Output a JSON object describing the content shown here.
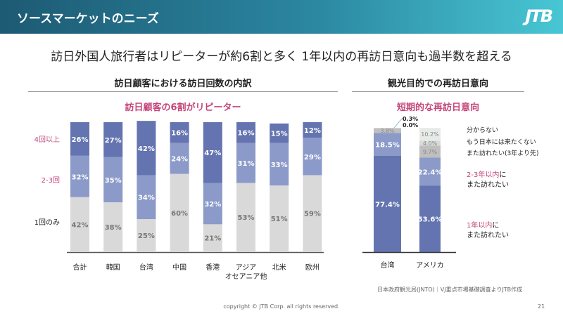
{
  "header": {
    "title": "ソースマーケットのニーズ",
    "logo": "JTB"
  },
  "main_title": "訪日外国人旅行者はリピーターが約6割と多く  1年以内の再訪日意向も過半数を超える",
  "left": {
    "title": "訪日顧客における訪日回数の内訳",
    "subtitle": "訪日顧客の6割がリピーター"
  },
  "right": {
    "title": "観光目的での再訪日意向",
    "subtitle": "短期的な再訪日意向"
  },
  "colors": {
    "dark": "#6474b0",
    "mid": "#8b9ac8",
    "light": "#d9d9d9",
    "pink": "#c4457a"
  },
  "chart_data": [
    {
      "type": "bar",
      "stacked": true,
      "categories": [
        "合計",
        "韓国",
        "台湾",
        "中国",
        "香港",
        "アジア\nオセアニア他",
        "北米",
        "欧州"
      ],
      "series": [
        {
          "name": "1回のみ",
          "values": [
            42,
            38,
            25,
            60,
            21,
            53,
            51,
            59
          ]
        },
        {
          "name": "2-3回",
          "values": [
            32,
            35,
            34,
            24,
            32,
            31,
            33,
            29
          ]
        },
        {
          "name": "4回以上",
          "values": [
            26,
            27,
            42,
            16,
            47,
            16,
            15,
            12
          ]
        }
      ],
      "labels": [
        "42%",
        "38%",
        "25%",
        "60%",
        "21%",
        "53%",
        "51%",
        "59%",
        "32%",
        "35%",
        "34%",
        "24%",
        "32%",
        "31%",
        "33%",
        "29%",
        "26%",
        "27%",
        "42%",
        "16%",
        "47%",
        "16%",
        "15%",
        "12%"
      ]
    },
    {
      "type": "bar",
      "stacked": true,
      "categories": [
        "台湾",
        "アメリカ"
      ],
      "series": [
        {
          "name": "1年以内にまた訪れたい",
          "values": [
            77.4,
            53.6
          ]
        },
        {
          "name": "2-3年以内にまた訪れたい",
          "values": [
            18.5,
            22.4
          ]
        },
        {
          "name": "また訪れたい(3年より先)",
          "values": [
            3.8,
            9.7
          ]
        },
        {
          "name": "もう日本には来たくない",
          "values": [
            0.0,
            4.0
          ]
        },
        {
          "name": "分からない",
          "values": [
            0.3,
            10.2
          ]
        }
      ]
    }
  ],
  "right_legend": {
    "unknown": "分からない",
    "never": "もう日本には来たくない",
    "later": "また訪れたい(3年より先)",
    "y23_a": "2-3年以内",
    "y23_b": "に",
    "y23_c": "また訪れたい",
    "y1_a": "1年以内",
    "y1_b": "に",
    "y1_c": "また訪れたい"
  },
  "source": "日本政府観光局(JNTO)｜VJ重点市場基礎調査よりJTB作成",
  "copyright": "copyright © JTB Corp. all rights reserved.",
  "page_number": "21"
}
